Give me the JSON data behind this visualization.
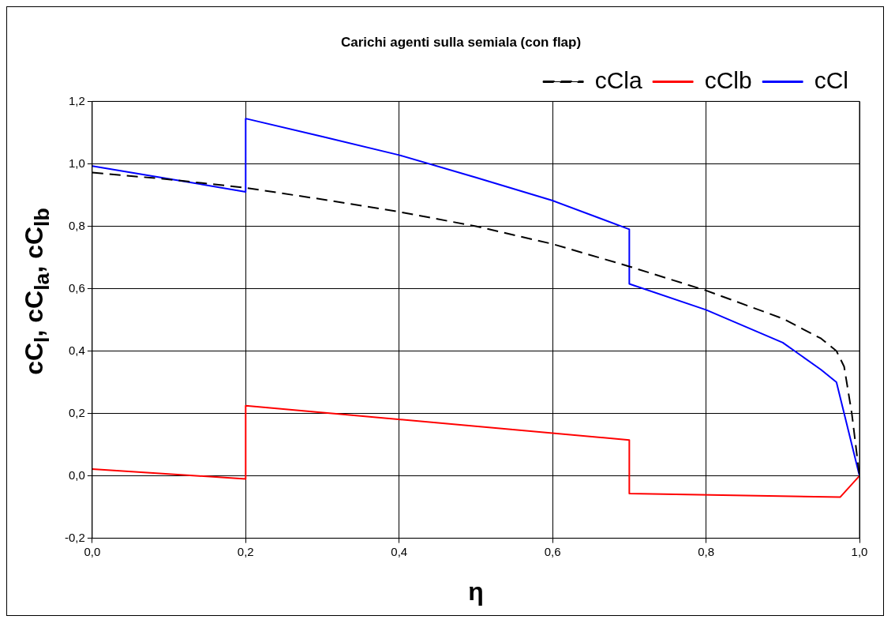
{
  "chart_data": {
    "type": "line",
    "title": "Carichi agenti sulla semiala (con flap)",
    "xlabel": "η",
    "ylabel": "cC$_{l}$, cC$_{la}$, cC$_{lb}$",
    "series": [
      {
        "name": "cCla",
        "color": "#000000",
        "line_style": "dashed",
        "x": [
          0,
          0.1,
          0.2,
          0.3,
          0.4,
          0.5,
          0.6,
          0.7,
          0.8,
          0.9,
          0.95,
          0.97,
          0.98,
          0.99,
          1.0
        ],
        "values": [
          0.972,
          0.95,
          0.923,
          0.886,
          0.846,
          0.8,
          0.743,
          0.671,
          0.594,
          0.504,
          0.44,
          0.4,
          0.35,
          0.2,
          0
        ]
      },
      {
        "name": "cClb",
        "color": "#ff0000",
        "line_style": "solid",
        "x": [
          0,
          0.2,
          0.2,
          0.7,
          0.7,
          0.975,
          1.0
        ],
        "values": [
          0.022,
          -0.01,
          0.225,
          0.115,
          -0.057,
          -0.068,
          0
        ]
      },
      {
        "name": "cCl",
        "color": "#0000ff",
        "line_style": "solid",
        "x": [
          0,
          0.1,
          0.2,
          0.2,
          0.3,
          0.4,
          0.5,
          0.6,
          0.7,
          0.7,
          0.8,
          0.9,
          0.95,
          0.97,
          0.98,
          0.99,
          1.0
        ],
        "values": [
          0.993,
          0.952,
          0.91,
          1.145,
          1.087,
          1.028,
          0.956,
          0.882,
          0.79,
          0.615,
          0.532,
          0.427,
          0.34,
          0.3,
          0.2,
          0.1,
          0
        ]
      }
    ],
    "xlim": [
      0,
      1
    ],
    "xticks": [
      {
        "value": 0,
        "label": "0,0"
      },
      {
        "value": 0.2,
        "label": "0,2"
      },
      {
        "value": 0.4,
        "label": "0,4"
      },
      {
        "value": 0.6,
        "label": "0,6"
      },
      {
        "value": 0.8,
        "label": "0,8"
      },
      {
        "value": 1,
        "label": "1,0"
      }
    ],
    "ylim": [
      -0.2,
      1.2
    ],
    "yticks": [
      {
        "value": -0.2,
        "label": "-0,2"
      },
      {
        "value": 0,
        "label": "0,0"
      },
      {
        "value": 0.2,
        "label": "0,2"
      },
      {
        "value": 0.4,
        "label": "0,4"
      },
      {
        "value": 0.6,
        "label": "0,6"
      },
      {
        "value": 0.8,
        "label": "0,8"
      },
      {
        "value": 1,
        "label": "1,0"
      },
      {
        "value": 1.2,
        "label": "1,2"
      }
    ],
    "grid": true,
    "legend": "top right",
    "marker": "none"
  }
}
